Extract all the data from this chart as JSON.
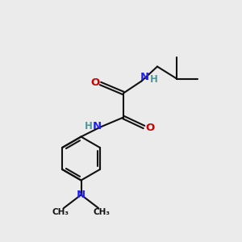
{
  "bg": "#ebebeb",
  "bond_color": "#111111",
  "N_color": "#2020ee",
  "O_color": "#cc0000",
  "H_color": "#4a9999",
  "lw": 1.5,
  "figsize": [
    3.0,
    3.0
  ],
  "dpi": 100,
  "xlim": [
    0,
    10
  ],
  "ylim": [
    0,
    10
  ]
}
